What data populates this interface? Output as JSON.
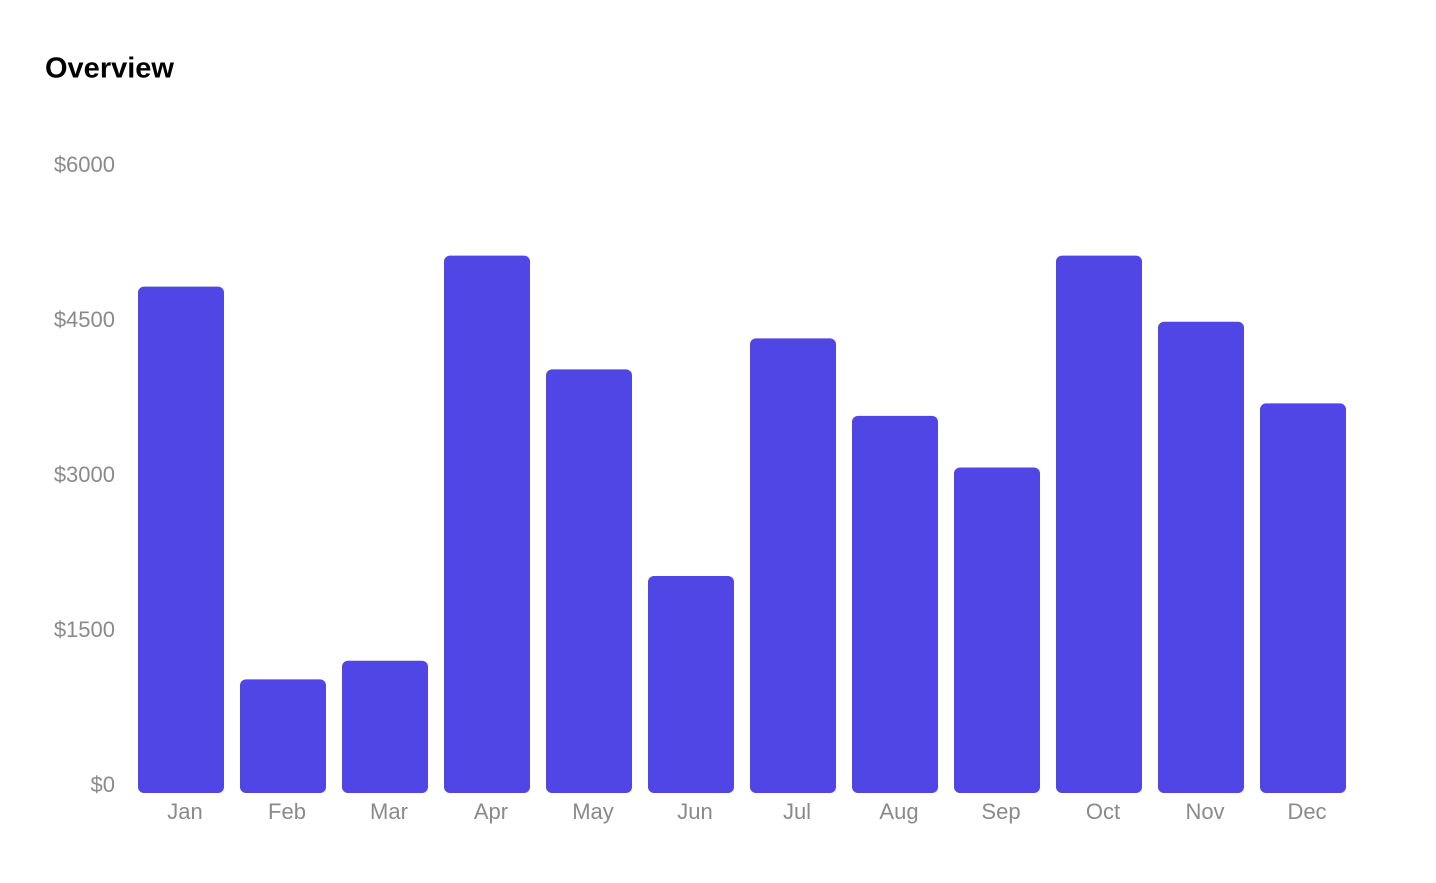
{
  "chart_data": {
    "type": "bar",
    "title": "Overview",
    "categories": [
      "Jan",
      "Feb",
      "Mar",
      "Apr",
      "May",
      "Jun",
      "Jul",
      "Aug",
      "Sep",
      "Oct",
      "Nov",
      "Dec"
    ],
    "values": [
      4900,
      1100,
      1280,
      5200,
      4100,
      2100,
      4400,
      3650,
      3150,
      5200,
      4560,
      3770
    ],
    "color": "#4f46e5",
    "ylim": [
      0,
      6000
    ],
    "yticks": [
      {
        "value": 0,
        "label": "$0"
      },
      {
        "value": 1500,
        "label": "$1500"
      },
      {
        "value": 3000,
        "label": "$3000"
      },
      {
        "value": 4500,
        "label": "$4500"
      },
      {
        "value": 6000,
        "label": "$6000"
      }
    ],
    "grid": false
  }
}
